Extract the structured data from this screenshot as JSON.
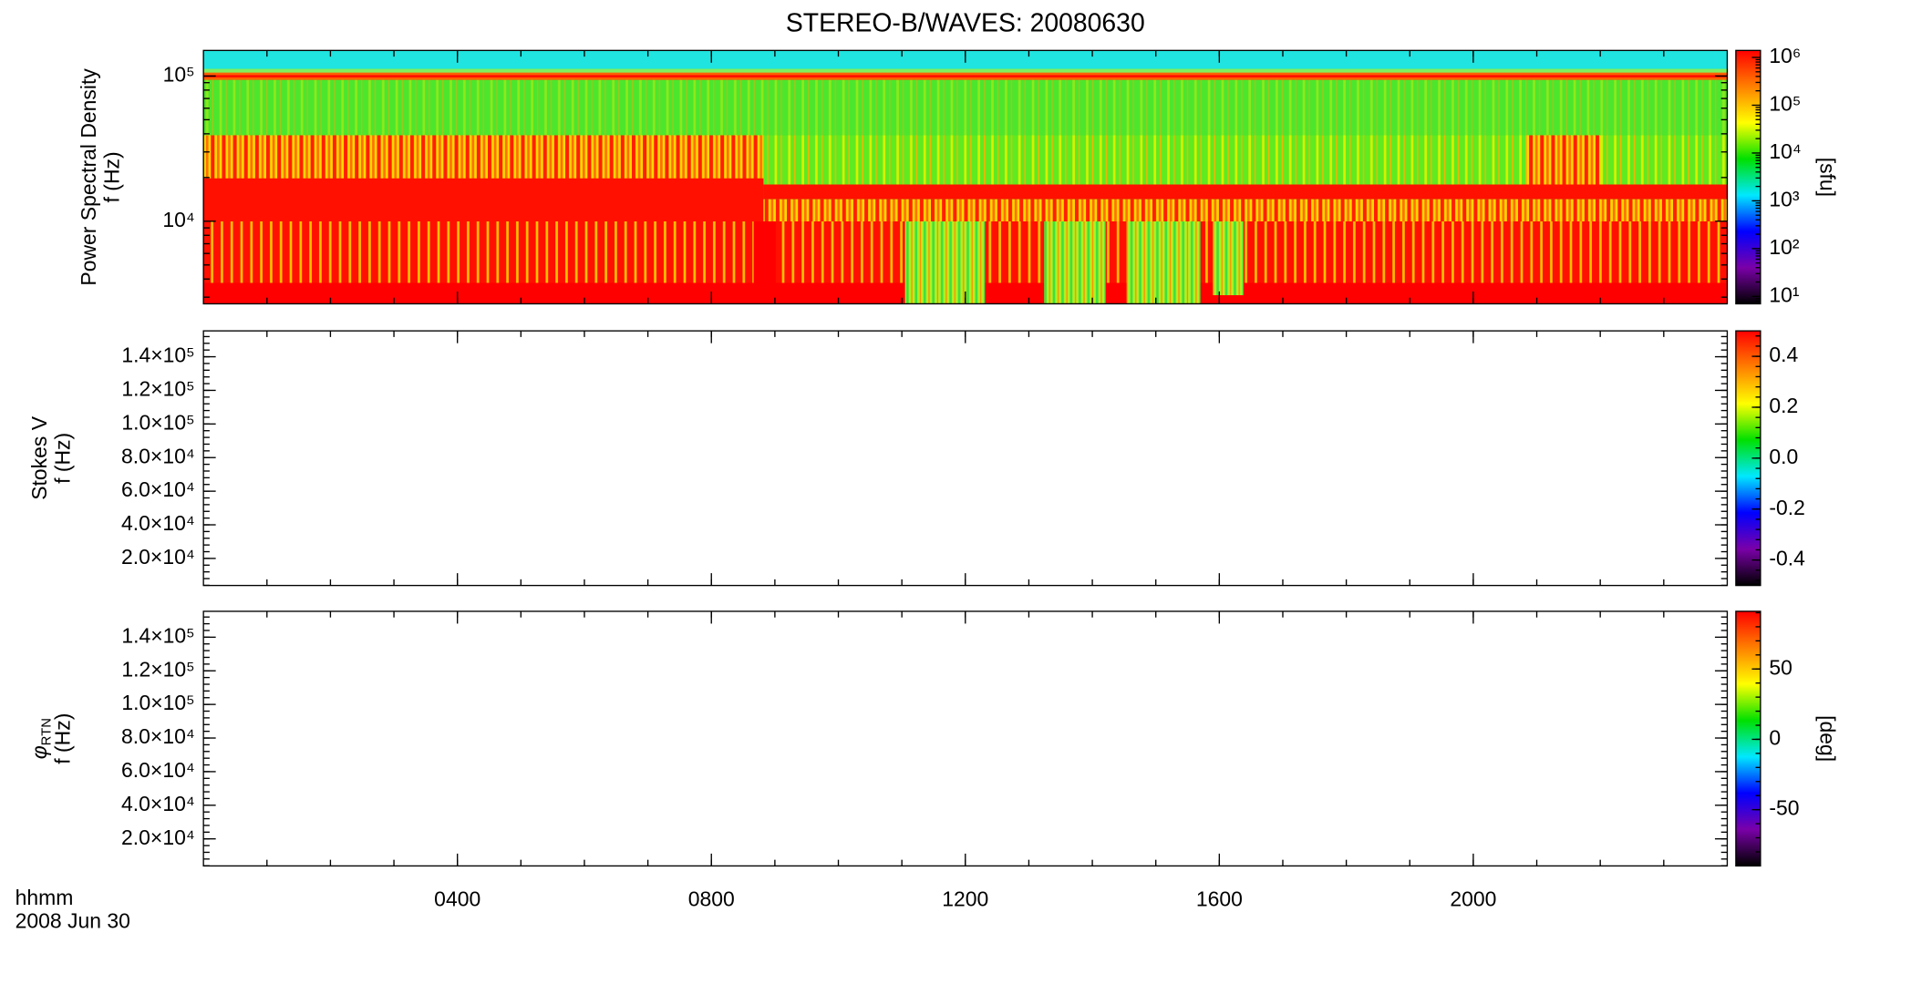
{
  "title": "STEREO-B/WAVES: 20080630",
  "xlabel": [
    "hhmm",
    "2008 Jun 30"
  ],
  "xlim": [
    0,
    24
  ],
  "xticks": [
    {
      "value": 4,
      "label": "0400"
    },
    {
      "value": 8,
      "label": "0800"
    },
    {
      "value": 12,
      "label": "1200"
    },
    {
      "value": 16,
      "label": "1600"
    },
    {
      "value": 20,
      "label": "2000"
    }
  ],
  "chart_data": [
    {
      "type": "heatmap",
      "ylabel": [
        "Power Spectral Density",
        "f (Hz)"
      ],
      "ylog": true,
      "ylim": [
        2700,
        150000
      ],
      "yticks": [
        {
          "value": 10000,
          "label": "10⁴"
        },
        {
          "value": 100000,
          "label": "10⁵"
        }
      ],
      "colorbar": {
        "label": "[sfu]",
        "log": true,
        "lim": [
          7,
          1400000
        ],
        "ticks": [
          {
            "value": 10,
            "label": "10¹"
          },
          {
            "value": 100,
            "label": "10²"
          },
          {
            "value": 1000,
            "label": "10³"
          },
          {
            "value": 10000,
            "label": "10⁴"
          },
          {
            "value": 100000,
            "label": "10⁵"
          },
          {
            "value": 1000000,
            "label": "10⁶"
          }
        ],
        "colormap": [
          "#000000",
          "#7a00a8",
          "#0000ff",
          "#00e8ff",
          "#00e000",
          "#ffff00",
          "#ff8000",
          "#ff0000"
        ]
      }
    },
    {
      "type": "heatmap",
      "ylabel": [
        "Stokes V",
        "f (Hz)"
      ],
      "ylog": false,
      "ylim": [
        3900,
        155400
      ],
      "yticks": [
        {
          "value": 20000,
          "label": "2.0×10⁴"
        },
        {
          "value": 40000,
          "label": "4.0×10⁴"
        },
        {
          "value": 60000,
          "label": "6.0×10⁴"
        },
        {
          "value": 80000,
          "label": "8.0×10⁴"
        },
        {
          "value": 100000,
          "label": "1.0×10⁵"
        },
        {
          "value": 120000,
          "label": "1.2×10⁵"
        },
        {
          "value": 140000,
          "label": "1.4×10⁵"
        }
      ],
      "colorbar": {
        "log": false,
        "lim": [
          -0.5,
          0.5
        ],
        "ticks": [
          {
            "value": -0.4,
            "label": "-0.4"
          },
          {
            "value": -0.2,
            "label": "-0.2"
          },
          {
            "value": 0,
            "label": "0.0"
          },
          0.2,
          0.4
        ],
        "colormap": [
          "#000000",
          "#7a00a8",
          "#0000ff",
          "#00e8ff",
          "#00e000",
          "#ffff00",
          "#ff8000",
          "#ff0000"
        ]
      }
    },
    {
      "type": "heatmap",
      "ylabel_symbol": "φ",
      "ylabel_subscript": "RTN",
      "ylabel": [
        "f (Hz)"
      ],
      "ylog": false,
      "ylim": [
        3900,
        155400
      ],
      "yticks": [
        {
          "value": 20000,
          "label": "2.0×10⁴"
        },
        {
          "value": 40000,
          "label": "4.0×10⁴"
        },
        {
          "value": 60000,
          "label": "6.0×10⁴"
        },
        {
          "value": 80000,
          "label": "8.0×10⁴"
        },
        {
          "value": 100000,
          "label": "1.0×10⁵"
        },
        {
          "value": 120000,
          "label": "1.2×10⁵"
        },
        {
          "value": 140000,
          "label": "1.4×10⁵"
        }
      ],
      "colorbar": {
        "label": "[deg]",
        "log": false,
        "lim": [
          -90,
          91
        ],
        "ticks": [
          -50,
          0,
          50
        ],
        "colormap": [
          "#000000",
          "#7a00a8",
          "#0000ff",
          "#00e8ff",
          "#00e000",
          "#ffff00",
          "#ff8000",
          "#ff0000"
        ]
      }
    }
  ]
}
